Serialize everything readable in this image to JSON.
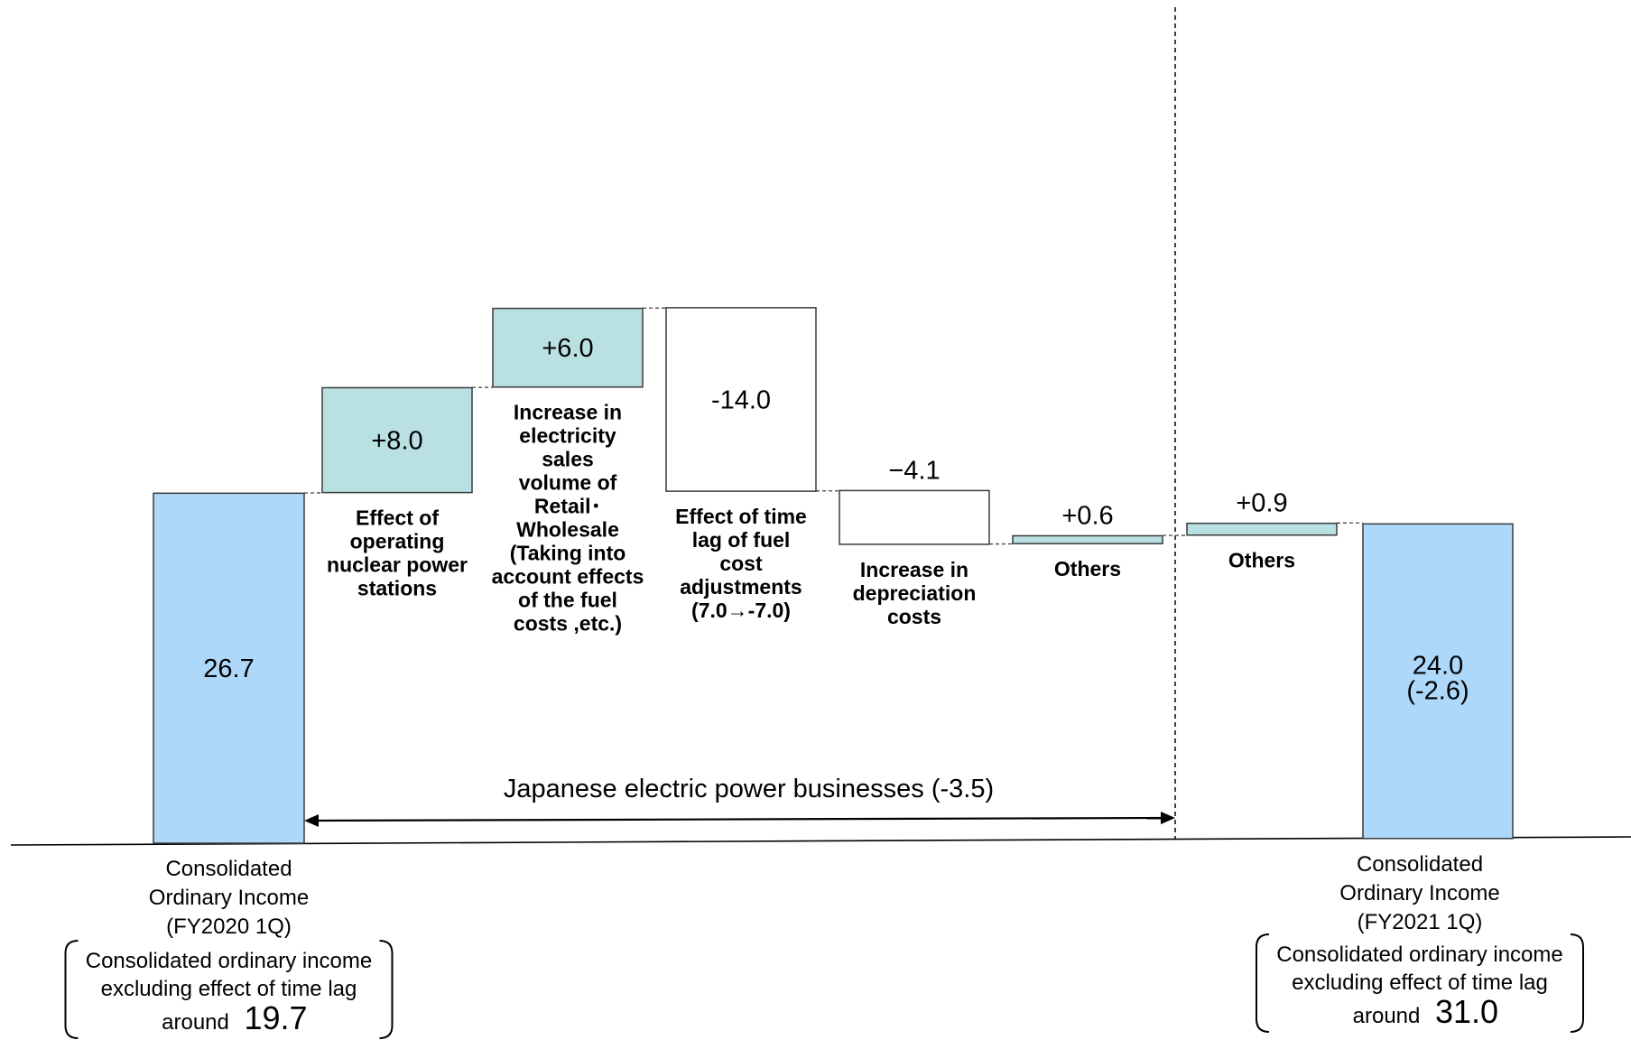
{
  "chart_data": {
    "type": "waterfall",
    "ylim": [
      0,
      44
    ],
    "colors": {
      "total": "#aed8fa",
      "increase": "#b9e0e2",
      "decrease": "#ffffff",
      "outline": "#3a3a3a"
    },
    "bars": [
      {
        "key": "start",
        "kind": "total",
        "value": 26.7,
        "value_label": "26.7",
        "sub_value_label": "",
        "label_lines": []
      },
      {
        "key": "nuclear",
        "kind": "increase",
        "value": 8.0,
        "value_label": "+8.0",
        "label_lines": [
          "Effect of",
          "operating",
          "nuclear power",
          "stations"
        ]
      },
      {
        "key": "sales",
        "kind": "increase",
        "value": 6.0,
        "value_label": "+6.0",
        "label_lines": [
          "Increase in",
          "electricity",
          "sales",
          "volume of",
          "Retail･",
          "Wholesale",
          "(Taking into",
          "account effects",
          "of the fuel",
          "costs ,etc.)"
        ]
      },
      {
        "key": "timelag",
        "kind": "decrease",
        "value": -14.0,
        "value_label": "-14.0",
        "label_lines": [
          "Effect of time",
          "lag of fuel",
          "cost",
          "adjustments",
          "(7.0→-7.0)"
        ]
      },
      {
        "key": "depreciation",
        "kind": "decrease",
        "value": -4.1,
        "value_label": "−4.1",
        "label_lines": [
          "Increase in",
          "depreciation",
          "costs"
        ]
      },
      {
        "key": "others1",
        "kind": "increase",
        "value": 0.6,
        "value_label": "+0.6",
        "label_lines": [
          "Others"
        ]
      },
      {
        "key": "others2",
        "kind": "increase",
        "value": 0.9,
        "value_label": "+0.9",
        "label_lines": [
          "Others"
        ]
      },
      {
        "key": "end",
        "kind": "total",
        "value": 24.0,
        "value_label": "24.0",
        "sub_value_label": "(-2.6)",
        "label_lines": []
      }
    ],
    "span_annotation": {
      "text": "Japanese electric power businesses (-3.5)",
      "from_bar": "start",
      "to_bar": "others1"
    },
    "left_total": {
      "caption_lines": [
        "Consolidated",
        "Ordinary Income",
        "(FY2020 1Q)"
      ],
      "note_lines": [
        "Consolidated ordinary income",
        "excluding effect of time lag"
      ],
      "note_prefix": "around",
      "note_value": "19.7"
    },
    "right_total": {
      "caption_lines": [
        "Consolidated",
        "Ordinary Income",
        "(FY2021 1Q)"
      ],
      "note_lines": [
        "Consolidated ordinary income",
        "excluding effect of time lag"
      ],
      "note_prefix": "around",
      "note_value": "31.0"
    }
  }
}
